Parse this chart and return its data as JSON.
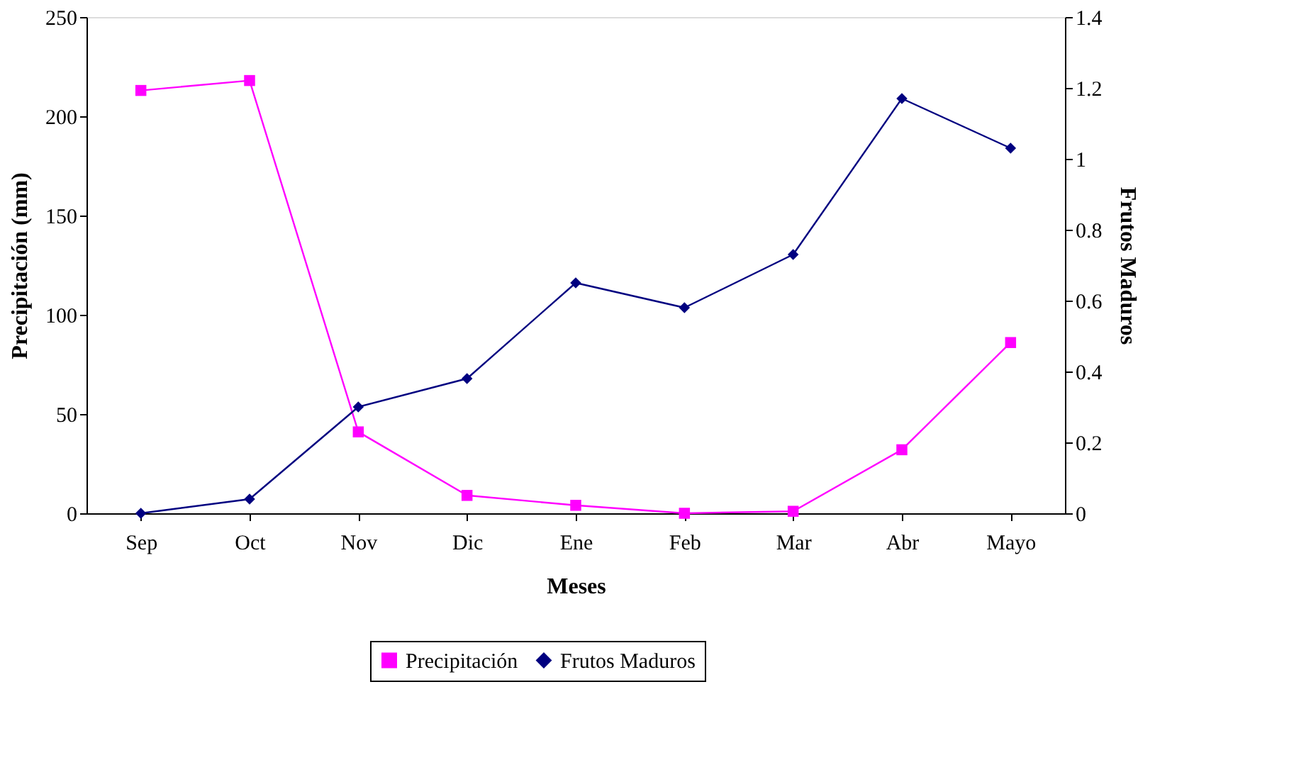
{
  "chart_data": {
    "type": "line",
    "xlabel": "Meses",
    "ylabel": "Precipitación (mm)",
    "y2label": "Frutos Maduros",
    "categories": [
      "Sep",
      "Oct",
      "Nov",
      "Dic",
      "Ene",
      "Feb",
      "Mar",
      "Abr",
      "Mayo"
    ],
    "series": [
      {
        "name": "Precipitación",
        "color": "#ff00ff",
        "marker": "square",
        "values": [
          213,
          218,
          41,
          9,
          4,
          0,
          1,
          32,
          86
        ]
      },
      {
        "name": "Frutos Maduros",
        "color": "#000080",
        "marker": "diamond",
        "axis": "y2",
        "values": [
          0,
          0.04,
          0.3,
          0.38,
          0.65,
          0.58,
          0.73,
          1.17,
          1.03
        ]
      }
    ],
    "ylim": [
      0,
      250
    ],
    "yticks": [
      0,
      50,
      100,
      150,
      200,
      250
    ],
    "y2lim": [
      0,
      1.4
    ],
    "y2ticks": [
      0,
      0.2,
      0.4,
      0.6,
      0.8,
      1,
      1.2,
      1.4
    ],
    "grid": false,
    "legend": "bottom"
  }
}
